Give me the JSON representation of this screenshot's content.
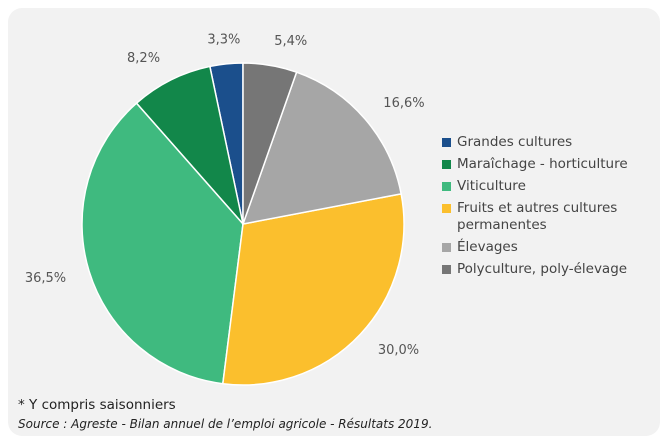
{
  "chart_data": {
    "type": "pie",
    "categories": [
      "Grandes cultures",
      "Maraîchage - horticulture",
      "Viticulture",
      "Fruits et autres cultures permanentes",
      "Élevages",
      "Polyculture, poly-élevage"
    ],
    "values": [
      3.3,
      8.2,
      36.5,
      30.0,
      16.6,
      5.4
    ],
    "value_labels": [
      "3,3%",
      "8,2%",
      "36,5%",
      "30,0%",
      "16,6%",
      "5,4%"
    ],
    "colors": [
      "#1b4f8c",
      "#12874a",
      "#3fba7f",
      "#fbbf2d",
      "#a6a6a6",
      "#767676"
    ],
    "legend": "right",
    "footnote": "* Y compris saisonniers",
    "source": "Source : Agreste - Bilan annuel de l’emploi agricole - Résultats 2019."
  }
}
